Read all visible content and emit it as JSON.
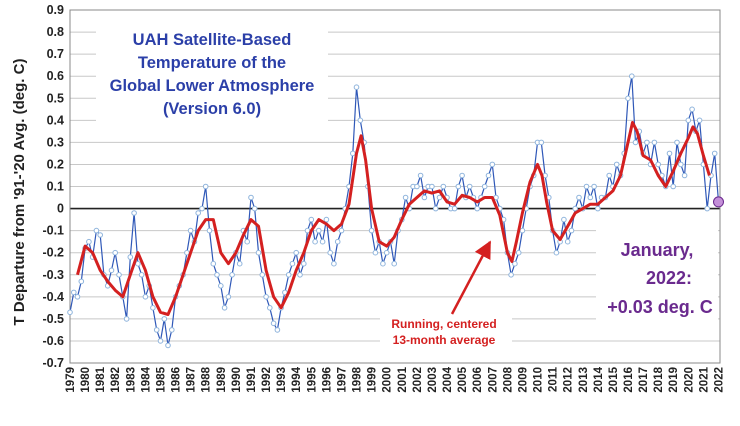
{
  "chart_data": {
    "type": "line",
    "title": [
      "UAH Satellite-Based",
      "Temperature of the",
      "Global Lower Atmosphere",
      "(Version 6.0)"
    ],
    "ylabel": "T Departure from '91-'20 Avg. (deg. C)",
    "xlabel": "",
    "ylim": [
      -0.7,
      0.9
    ],
    "yticks": [
      "0.9",
      "0.8",
      "0.7",
      "0.6",
      "0.5",
      "0.4",
      "0.3",
      "0.2",
      "0.1",
      "0",
      "-0.1",
      "-0.2",
      "-0.3",
      "-0.4",
      "-0.5",
      "-0.6",
      "-0.7"
    ],
    "xlim": [
      1979,
      2022.1
    ],
    "xticks": [
      "1979",
      "1980",
      "1981",
      "1982",
      "1983",
      "1984",
      "1985",
      "1986",
      "1987",
      "1988",
      "1989",
      "1990",
      "1991",
      "1992",
      "1993",
      "1994",
      "1995",
      "1996",
      "1997",
      "1998",
      "1999",
      "2000",
      "2001",
      "2002",
      "2003",
      "2004",
      "2005",
      "2006",
      "2007",
      "2008",
      "2009",
      "2010",
      "2011",
      "2012",
      "2013",
      "2014",
      "2015",
      "2016",
      "2017",
      "2018",
      "2019",
      "2020",
      "2021",
      "2022"
    ],
    "grid": "horizontal",
    "series": [
      {
        "role": "monthly anomalies",
        "color": "#2f58b8",
        "marker_color": "#8fb4dc",
        "x": [
          1979.0,
          1979.25,
          1979.5,
          1979.75,
          1980.0,
          1980.25,
          1980.5,
          1980.75,
          1981.0,
          1981.25,
          1981.5,
          1981.75,
          1982.0,
          1982.25,
          1982.5,
          1982.75,
          1983.0,
          1983.25,
          1983.5,
          1983.75,
          1984.0,
          1984.25,
          1984.5,
          1984.75,
          1985.0,
          1985.25,
          1985.5,
          1985.75,
          1986.0,
          1986.25,
          1986.5,
          1986.75,
          1987.0,
          1987.25,
          1987.5,
          1987.75,
          1988.0,
          1988.25,
          1988.5,
          1988.75,
          1989.0,
          1989.25,
          1989.5,
          1989.75,
          1990.0,
          1990.25,
          1990.5,
          1990.75,
          1991.0,
          1991.25,
          1991.5,
          1991.75,
          1992.0,
          1992.25,
          1992.5,
          1992.75,
          1993.0,
          1993.25,
          1993.5,
          1993.75,
          1994.0,
          1994.25,
          1994.5,
          1994.75,
          1995.0,
          1995.25,
          1995.5,
          1995.75,
          1996.0,
          1996.25,
          1996.5,
          1996.75,
          1997.0,
          1997.25,
          1997.5,
          1997.75,
          1998.0,
          1998.25,
          1998.5,
          1998.75,
          1999.0,
          1999.25,
          1999.5,
          1999.75,
          2000.0,
          2000.25,
          2000.5,
          2000.75,
          2001.0,
          2001.25,
          2001.5,
          2001.75,
          2002.0,
          2002.25,
          2002.5,
          2002.75,
          2003.0,
          2003.25,
          2003.5,
          2003.75,
          2004.0,
          2004.25,
          2004.5,
          2004.75,
          2005.0,
          2005.25,
          2005.5,
          2005.75,
          2006.0,
          2006.25,
          2006.5,
          2006.75,
          2007.0,
          2007.25,
          2007.5,
          2007.75,
          2008.0,
          2008.25,
          2008.5,
          2008.75,
          2009.0,
          2009.25,
          2009.5,
          2009.75,
          2010.0,
          2010.25,
          2010.5,
          2010.75,
          2011.0,
          2011.25,
          2011.5,
          2011.75,
          2012.0,
          2012.25,
          2012.5,
          2012.75,
          2013.0,
          2013.25,
          2013.5,
          2013.75,
          2014.0,
          2014.25,
          2014.5,
          2014.75,
          2015.0,
          2015.25,
          2015.5,
          2015.75,
          2016.0,
          2016.25,
          2016.5,
          2016.75,
          2017.0,
          2017.25,
          2017.5,
          2017.75,
          2018.0,
          2018.25,
          2018.5,
          2018.75,
          2019.0,
          2019.25,
          2019.5,
          2019.75,
          2020.0,
          2020.25,
          2020.5,
          2020.75,
          2021.0,
          2021.25,
          2021.5,
          2021.75,
          2022.0
        ],
        "y": [
          -0.47,
          -0.38,
          -0.4,
          -0.33,
          -0.18,
          -0.15,
          -0.22,
          -0.1,
          -0.12,
          -0.3,
          -0.35,
          -0.28,
          -0.2,
          -0.3,
          -0.4,
          -0.5,
          -0.22,
          -0.02,
          -0.25,
          -0.3,
          -0.4,
          -0.35,
          -0.45,
          -0.55,
          -0.6,
          -0.5,
          -0.62,
          -0.55,
          -0.4,
          -0.35,
          -0.3,
          -0.2,
          -0.1,
          -0.15,
          -0.02,
          0.0,
          0.1,
          -0.1,
          -0.25,
          -0.3,
          -0.35,
          -0.45,
          -0.4,
          -0.3,
          -0.2,
          -0.25,
          -0.1,
          -0.15,
          0.05,
          0.0,
          -0.2,
          -0.3,
          -0.4,
          -0.45,
          -0.52,
          -0.55,
          -0.45,
          -0.38,
          -0.3,
          -0.25,
          -0.2,
          -0.3,
          -0.25,
          -0.1,
          -0.05,
          -0.15,
          -0.1,
          -0.15,
          -0.05,
          -0.2,
          -0.25,
          -0.15,
          -0.1,
          0.0,
          0.1,
          0.25,
          0.55,
          0.4,
          0.3,
          0.1,
          -0.1,
          -0.2,
          -0.15,
          -0.25,
          -0.2,
          -0.15,
          -0.25,
          -0.1,
          -0.05,
          0.05,
          0.0,
          0.1,
          0.1,
          0.15,
          0.05,
          0.1,
          0.1,
          0.0,
          0.05,
          0.1,
          0.05,
          0.0,
          0.0,
          0.1,
          0.15,
          0.05,
          0.1,
          0.05,
          0.0,
          0.05,
          0.1,
          0.15,
          0.2,
          0.05,
          0.0,
          -0.05,
          -0.2,
          -0.3,
          -0.25,
          -0.2,
          -0.1,
          0.0,
          0.1,
          0.15,
          0.3,
          0.3,
          0.15,
          0.05,
          -0.1,
          -0.2,
          -0.15,
          -0.05,
          -0.15,
          -0.1,
          0.0,
          0.05,
          0.0,
          0.1,
          0.05,
          0.1,
          0.0,
          0.05,
          0.05,
          0.15,
          0.1,
          0.2,
          0.15,
          0.25,
          0.5,
          0.6,
          0.3,
          0.35,
          0.25,
          0.3,
          0.2,
          0.3,
          0.2,
          0.15,
          0.1,
          0.25,
          0.1,
          0.3,
          0.2,
          0.15,
          0.4,
          0.45,
          0.35,
          0.4,
          0.2,
          0.0,
          0.15,
          0.25,
          0.03
        ]
      },
      {
        "role": "running average",
        "color": "#d42020",
        "x": [
          1979.5,
          1980.0,
          1980.5,
          1981.0,
          1981.5,
          1982.0,
          1982.5,
          1983.0,
          1983.5,
          1984.0,
          1984.5,
          1985.0,
          1985.5,
          1986.0,
          1986.5,
          1987.0,
          1987.5,
          1988.0,
          1988.5,
          1989.0,
          1989.5,
          1990.0,
          1990.5,
          1991.0,
          1991.5,
          1992.0,
          1992.5,
          1993.0,
          1993.5,
          1994.0,
          1994.5,
          1995.0,
          1995.5,
          1996.0,
          1996.5,
          1997.0,
          1997.5,
          1998.0,
          1998.3,
          1998.6,
          1999.0,
          1999.5,
          2000.0,
          2000.5,
          2001.0,
          2001.5,
          2002.0,
          2002.5,
          2003.0,
          2003.5,
          2004.0,
          2004.5,
          2005.0,
          2005.5,
          2006.0,
          2006.5,
          2007.0,
          2007.5,
          2008.0,
          2008.3,
          2008.6,
          2009.0,
          2009.5,
          2010.0,
          2010.3,
          2010.6,
          2011.0,
          2011.5,
          2012.0,
          2012.5,
          2013.0,
          2013.5,
          2014.0,
          2014.5,
          2015.0,
          2015.5,
          2016.0,
          2016.3,
          2016.6,
          2017.0,
          2017.5,
          2018.0,
          2018.5,
          2019.0,
          2019.5,
          2020.0,
          2020.3,
          2020.6,
          2021.0,
          2021.4
        ],
        "y": [
          -0.3,
          -0.17,
          -0.2,
          -0.28,
          -0.33,
          -0.37,
          -0.4,
          -0.3,
          -0.2,
          -0.28,
          -0.4,
          -0.47,
          -0.48,
          -0.4,
          -0.3,
          -0.2,
          -0.1,
          -0.05,
          -0.05,
          -0.2,
          -0.25,
          -0.2,
          -0.12,
          -0.05,
          -0.08,
          -0.28,
          -0.4,
          -0.45,
          -0.38,
          -0.28,
          -0.2,
          -0.1,
          -0.05,
          -0.07,
          -0.1,
          -0.07,
          0.02,
          0.25,
          0.33,
          0.22,
          0.0,
          -0.15,
          -0.17,
          -0.13,
          -0.05,
          0.02,
          0.05,
          0.08,
          0.07,
          0.08,
          0.03,
          0.02,
          0.06,
          0.05,
          0.03,
          0.05,
          0.05,
          -0.03,
          -0.2,
          -0.24,
          -0.15,
          -0.02,
          0.12,
          0.2,
          0.15,
          0.03,
          -0.1,
          -0.14,
          -0.08,
          -0.02,
          0.0,
          0.02,
          0.02,
          0.05,
          0.08,
          0.15,
          0.3,
          0.39,
          0.35,
          0.24,
          0.22,
          0.15,
          0.1,
          0.17,
          0.25,
          0.32,
          0.37,
          0.34,
          0.24,
          0.15
        ]
      }
    ],
    "annotations": [
      {
        "name": "running-average-note",
        "lines": [
          "Running, centered",
          "13-month average"
        ],
        "color": "#d42020"
      },
      {
        "name": "latest-value-callout",
        "lines": [
          "January,",
          "2022:",
          "+0.03 deg. C"
        ],
        "color": "#6a2a8e"
      }
    ]
  }
}
